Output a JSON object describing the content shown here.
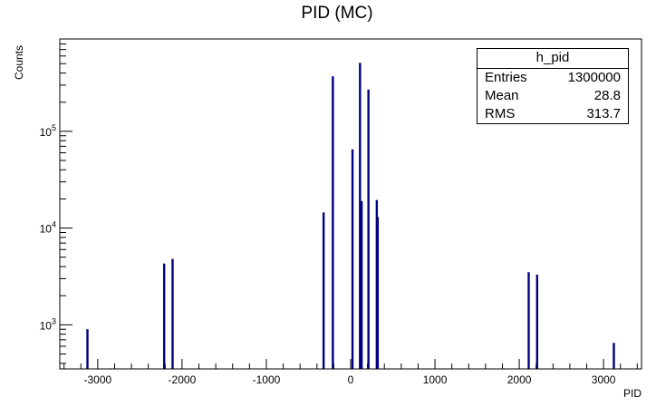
{
  "chart_data": {
    "type": "bar",
    "title": "PID (MC)",
    "xlabel": "PID",
    "ylabel": "Counts",
    "xlim": [
      -3450,
      3450
    ],
    "ylim": [
      350,
      900000
    ],
    "yscale": "log",
    "bar_color": "#000080",
    "x_ticks": [
      -3000,
      -2000,
      -1000,
      0,
      1000,
      2000,
      3000
    ],
    "x_tick_labels": [
      "-3000",
      "-2000",
      "-1000",
      "0",
      "1000",
      "2000",
      "3000"
    ],
    "y_ticks": [
      {
        "value": 1000,
        "base": "10",
        "exp": "3"
      },
      {
        "value": 10000,
        "base": "10",
        "exp": "4"
      },
      {
        "value": 100000,
        "base": "10",
        "exp": "5"
      }
    ],
    "x": [
      -3122,
      -2212,
      -2112,
      -321,
      -211,
      22,
      111,
      130,
      211,
      310,
      321,
      2112,
      2212,
      3122
    ],
    "values": [
      900,
      4300,
      4800,
      14500,
      370000,
      65000,
      510000,
      19000,
      270000,
      19500,
      13000,
      3500,
      3300,
      650
    ]
  },
  "stats": {
    "name": "h_pid",
    "rows": [
      {
        "label": "Entries",
        "value": "1300000"
      },
      {
        "label": "Mean",
        "value": "28.8"
      },
      {
        "label": "RMS",
        "value": "313.7"
      }
    ]
  }
}
